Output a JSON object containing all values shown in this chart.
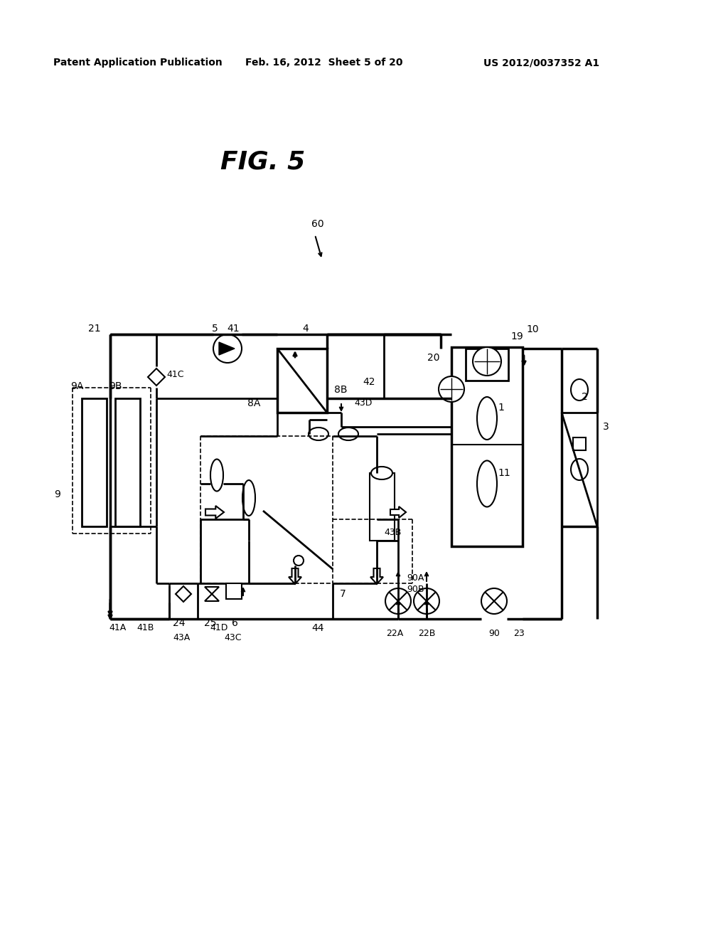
{
  "header_left": "Patent Application Publication",
  "header_center": "Feb. 16, 2012  Sheet 5 of 20",
  "header_right": "US 2012/0037352 A1",
  "fig_title": "FIG. 5",
  "bg_color": "#ffffff"
}
